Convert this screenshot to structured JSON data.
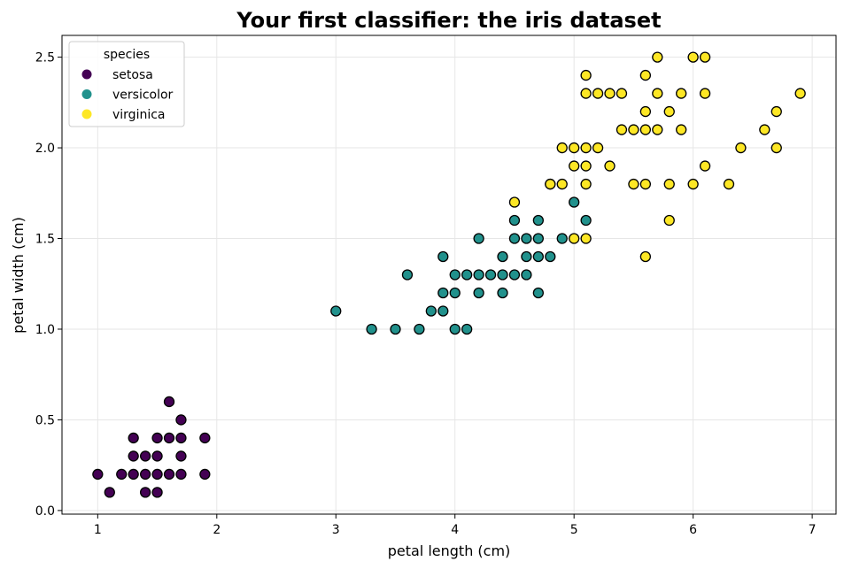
{
  "chart_data": {
    "type": "scatter",
    "title": "Your first classifier: the iris dataset",
    "xlabel": "petal length (cm)",
    "ylabel": "petal width (cm)",
    "xlim": [
      0.7,
      7.2
    ],
    "ylim": [
      -0.02,
      2.62
    ],
    "xticks": [
      "1",
      "2",
      "3",
      "4",
      "5",
      "6",
      "7"
    ],
    "yticks": [
      "0.0",
      "0.5",
      "1.0",
      "1.5",
      "2.0",
      "2.5"
    ],
    "grid": true,
    "legend": {
      "title": "species",
      "placement": "top-left"
    },
    "series": [
      {
        "name": "setosa",
        "color": "#440154",
        "points": [
          [
            1.0,
            0.2
          ],
          [
            1.1,
            0.1
          ],
          [
            1.2,
            0.2
          ],
          [
            1.3,
            0.2
          ],
          [
            1.3,
            0.3
          ],
          [
            1.3,
            0.4
          ],
          [
            1.4,
            0.1
          ],
          [
            1.4,
            0.2
          ],
          [
            1.4,
            0.3
          ],
          [
            1.5,
            0.1
          ],
          [
            1.5,
            0.2
          ],
          [
            1.5,
            0.3
          ],
          [
            1.5,
            0.4
          ],
          [
            1.6,
            0.2
          ],
          [
            1.6,
            0.4
          ],
          [
            1.6,
            0.6
          ],
          [
            1.7,
            0.2
          ],
          [
            1.7,
            0.3
          ],
          [
            1.7,
            0.4
          ],
          [
            1.7,
            0.5
          ],
          [
            1.9,
            0.2
          ],
          [
            1.9,
            0.4
          ]
        ]
      },
      {
        "name": "versicolor",
        "color": "#21918c",
        "points": [
          [
            3.0,
            1.1
          ],
          [
            3.3,
            1.0
          ],
          [
            3.5,
            1.0
          ],
          [
            3.6,
            1.3
          ],
          [
            3.7,
            1.0
          ],
          [
            3.8,
            1.1
          ],
          [
            3.9,
            1.1
          ],
          [
            3.9,
            1.2
          ],
          [
            3.9,
            1.4
          ],
          [
            4.0,
            1.0
          ],
          [
            4.0,
            1.2
          ],
          [
            4.0,
            1.3
          ],
          [
            4.1,
            1.0
          ],
          [
            4.1,
            1.3
          ],
          [
            4.2,
            1.2
          ],
          [
            4.2,
            1.3
          ],
          [
            4.2,
            1.5
          ],
          [
            4.3,
            1.3
          ],
          [
            4.4,
            1.2
          ],
          [
            4.4,
            1.3
          ],
          [
            4.4,
            1.4
          ],
          [
            4.5,
            1.3
          ],
          [
            4.5,
            1.5
          ],
          [
            4.5,
            1.6
          ],
          [
            4.6,
            1.3
          ],
          [
            4.6,
            1.4
          ],
          [
            4.6,
            1.5
          ],
          [
            4.7,
            1.2
          ],
          [
            4.7,
            1.4
          ],
          [
            4.7,
            1.5
          ],
          [
            4.7,
            1.6
          ],
          [
            4.8,
            1.4
          ],
          [
            4.8,
            1.8
          ],
          [
            4.9,
            1.5
          ],
          [
            5.0,
            1.7
          ],
          [
            5.1,
            1.6
          ]
        ]
      },
      {
        "name": "virginica",
        "color": "#fde725",
        "points": [
          [
            4.5,
            1.7
          ],
          [
            4.8,
            1.8
          ],
          [
            4.9,
            1.8
          ],
          [
            4.9,
            2.0
          ],
          [
            5.0,
            1.5
          ],
          [
            5.0,
            1.9
          ],
          [
            5.0,
            2.0
          ],
          [
            5.1,
            1.5
          ],
          [
            5.1,
            1.8
          ],
          [
            5.1,
            1.9
          ],
          [
            5.1,
            2.0
          ],
          [
            5.1,
            2.3
          ],
          [
            5.1,
            2.4
          ],
          [
            5.2,
            2.0
          ],
          [
            5.2,
            2.3
          ],
          [
            5.3,
            1.9
          ],
          [
            5.3,
            2.3
          ],
          [
            5.4,
            2.1
          ],
          [
            5.4,
            2.3
          ],
          [
            5.5,
            1.8
          ],
          [
            5.5,
            2.1
          ],
          [
            5.6,
            1.4
          ],
          [
            5.6,
            1.8
          ],
          [
            5.6,
            2.1
          ],
          [
            5.6,
            2.2
          ],
          [
            5.6,
            2.4
          ],
          [
            5.7,
            2.1
          ],
          [
            5.7,
            2.3
          ],
          [
            5.7,
            2.5
          ],
          [
            5.8,
            1.6
          ],
          [
            5.8,
            1.8
          ],
          [
            5.8,
            2.2
          ],
          [
            5.9,
            2.1
          ],
          [
            5.9,
            2.3
          ],
          [
            6.0,
            1.8
          ],
          [
            6.0,
            2.5
          ],
          [
            6.1,
            1.9
          ],
          [
            6.1,
            2.3
          ],
          [
            6.1,
            2.5
          ],
          [
            6.3,
            1.8
          ],
          [
            6.4,
            2.0
          ],
          [
            6.6,
            2.1
          ],
          [
            6.7,
            2.0
          ],
          [
            6.7,
            2.2
          ],
          [
            6.9,
            2.3
          ]
        ]
      }
    ]
  }
}
